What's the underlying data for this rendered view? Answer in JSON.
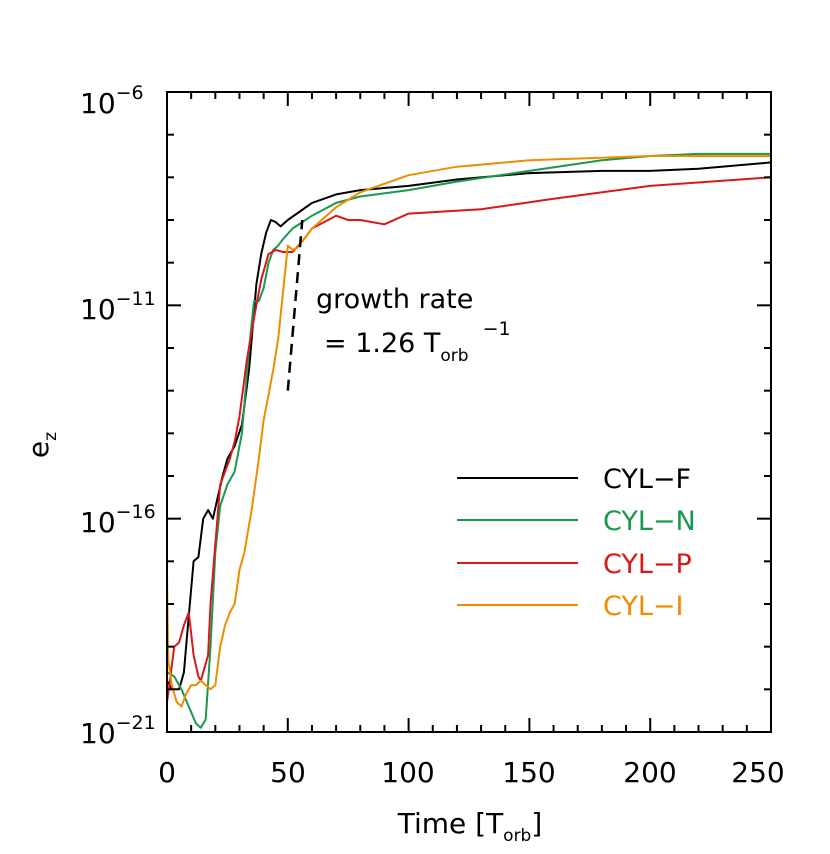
{
  "chart_data": {
    "type": "line",
    "title": "",
    "xlabel": "Time",
    "xlabel_unit_main": "T",
    "xlabel_unit_sub": "orb",
    "ylabel_main": "e",
    "ylabel_sub": "z",
    "xlim": [
      0,
      250
    ],
    "ylim_log10": [
      -21,
      -6
    ],
    "yscale": "log",
    "x_ticks": [
      0,
      50,
      100,
      150,
      200,
      250
    ],
    "x_tick_labels": [
      "0",
      "50",
      "100",
      "150",
      "200",
      "250"
    ],
    "y_ticks": [
      {
        "base": "10",
        "exp": "−6",
        "value_log10": -6
      },
      {
        "base": "10",
        "exp": "−11",
        "value_log10": -11
      },
      {
        "base": "10",
        "exp": "−16",
        "value_log10": -16
      },
      {
        "base": "10",
        "exp": "−21",
        "value_log10": -21
      }
    ],
    "legend_position": "center-right",
    "annotation": {
      "line1": "growth rate",
      "line2_prefix": "= 1.26 T",
      "line2_sub": "orb",
      "line2_sup": "−1",
      "dashed_x": [
        50,
        56
      ],
      "dashed_log10": [
        -13.0,
        -9.0
      ]
    },
    "series": [
      {
        "name": "CYL−F",
        "color": "#000000",
        "x": [
          0,
          2,
          5,
          7,
          9,
          11,
          13,
          15,
          17,
          19,
          21,
          23,
          25,
          28,
          31,
          34,
          37,
          39,
          41,
          43,
          45,
          47,
          50,
          55,
          60,
          70,
          80,
          100,
          120,
          150,
          180,
          200,
          220,
          250
        ],
        "log10": [
          -19.8,
          -20.0,
          -20.0,
          -19.6,
          -18.3,
          -17.0,
          -16.9,
          -16.0,
          -15.8,
          -16.0,
          -15.5,
          -15.0,
          -14.6,
          -14.3,
          -13.8,
          -12.5,
          -10.5,
          -9.8,
          -9.3,
          -9.0,
          -9.05,
          -9.15,
          -9.0,
          -8.8,
          -8.6,
          -8.4,
          -8.3,
          -8.2,
          -8.05,
          -7.9,
          -7.85,
          -7.85,
          -7.8,
          -7.65
        ]
      },
      {
        "name": "CYL−N",
        "color": "#1a9850",
        "x": [
          0,
          3,
          6,
          9,
          12,
          14,
          16,
          18,
          20,
          22,
          25,
          28,
          31,
          34,
          36,
          38,
          40,
          42,
          44,
          46,
          48,
          52,
          60,
          70,
          80,
          100,
          120,
          150,
          180,
          200,
          220,
          250
        ],
        "log10": [
          -19.6,
          -19.7,
          -20.0,
          -20.4,
          -20.8,
          -20.9,
          -20.7,
          -19.0,
          -16.8,
          -15.7,
          -15.2,
          -14.9,
          -14.0,
          -12.0,
          -10.9,
          -10.9,
          -10.6,
          -10.0,
          -9.7,
          -9.6,
          -9.45,
          -9.2,
          -8.9,
          -8.6,
          -8.45,
          -8.3,
          -8.1,
          -7.85,
          -7.6,
          -7.5,
          -7.45,
          -7.45
        ]
      },
      {
        "name": "CYL−P",
        "color": "#d7191c",
        "x": [
          0,
          1,
          3,
          5,
          7,
          9,
          10,
          11,
          13,
          14,
          15,
          17,
          18,
          20,
          22,
          24,
          26,
          28,
          30,
          33,
          36,
          39,
          42,
          45,
          48,
          52,
          56,
          60,
          70,
          75,
          80,
          90,
          100,
          130,
          160,
          200,
          250
        ],
        "log10": [
          -20.3,
          -19.9,
          -19.0,
          -18.9,
          -18.5,
          -18.2,
          -18.7,
          -19.2,
          -19.7,
          -19.8,
          -19.6,
          -19.2,
          -18.0,
          -16.6,
          -15.2,
          -14.9,
          -14.6,
          -14.2,
          -13.6,
          -12.3,
          -11.3,
          -10.4,
          -9.8,
          -9.7,
          -9.75,
          -9.75,
          -9.5,
          -9.2,
          -8.9,
          -9.0,
          -9.0,
          -9.1,
          -8.85,
          -8.75,
          -8.5,
          -8.2,
          -8.0
        ]
      },
      {
        "name": "CYL−I",
        "color": "#f08c00",
        "x": [
          0,
          0.5,
          2,
          4,
          6,
          8,
          10,
          12,
          14,
          16,
          18,
          20,
          22,
          24,
          26,
          28,
          30,
          32,
          35,
          38,
          40,
          42,
          44,
          46,
          48,
          50,
          52,
          54,
          60,
          70,
          80,
          100,
          120,
          150,
          200,
          250
        ],
        "log10": [
          -17.3,
          -19.3,
          -19.9,
          -20.3,
          -20.4,
          -20.1,
          -19.9,
          -19.9,
          -19.8,
          -19.9,
          -20.0,
          -19.9,
          -19.0,
          -18.5,
          -18.2,
          -18.0,
          -17.2,
          -16.8,
          -15.8,
          -14.6,
          -13.7,
          -13.1,
          -12.5,
          -11.8,
          -10.7,
          -9.6,
          -9.7,
          -9.65,
          -9.2,
          -8.7,
          -8.35,
          -7.95,
          -7.75,
          -7.6,
          -7.5,
          -7.5
        ]
      }
    ]
  }
}
